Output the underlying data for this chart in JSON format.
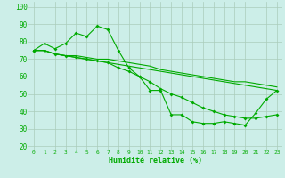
{
  "background_color": "#cceee8",
  "grid_color": "#aaccbb",
  "line_color": "#00aa00",
  "xlabel": "Humidité relative (%)",
  "ylabel_ticks": [
    20,
    30,
    40,
    50,
    60,
    70,
    80,
    90,
    100
  ],
  "xlim": [
    -0.5,
    23.5
  ],
  "ylim": [
    18,
    103
  ],
  "x": [
    0,
    1,
    2,
    3,
    4,
    5,
    6,
    7,
    8,
    9,
    10,
    11,
    12,
    13,
    14,
    15,
    16,
    17,
    18,
    19,
    20,
    21,
    22,
    23
  ],
  "series1": [
    75,
    79,
    76,
    79,
    85,
    83,
    89,
    87,
    75,
    65,
    60,
    52,
    52,
    38,
    38,
    34,
    33,
    33,
    34,
    33,
    32,
    39,
    47,
    52
  ],
  "series2": [
    75,
    75,
    73,
    72,
    72,
    71,
    70,
    70,
    69,
    68,
    67,
    66,
    64,
    63,
    62,
    61,
    60,
    59,
    58,
    57,
    57,
    56,
    55,
    54
  ],
  "series3": [
    75,
    75,
    73,
    72,
    71,
    70,
    69,
    68,
    67,
    66,
    65,
    64,
    63,
    62,
    61,
    60,
    59,
    58,
    57,
    56,
    55,
    54,
    53,
    52
  ],
  "series4": [
    75,
    75,
    73,
    72,
    71,
    70,
    69,
    68,
    65,
    63,
    60,
    57,
    53,
    50,
    48,
    45,
    42,
    40,
    38,
    37,
    36,
    36,
    37,
    38
  ],
  "xtick_labels": [
    "0",
    "1",
    "2",
    "3",
    "4",
    "5",
    "6",
    "7",
    "8",
    "9",
    "10",
    "11",
    "12",
    "13",
    "14",
    "15",
    "16",
    "17",
    "18",
    "19",
    "20",
    "21",
    "22",
    "23"
  ]
}
